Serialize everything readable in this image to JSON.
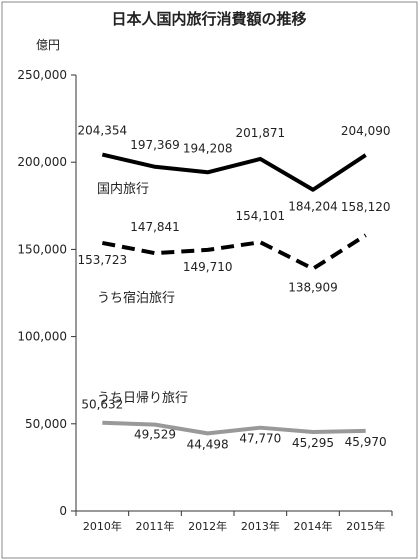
{
  "chart_data": {
    "type": "line",
    "title": "日本人国内旅行消費額の推移",
    "unit_label": "億円",
    "categories": [
      "2010年",
      "2011年",
      "2012年",
      "2013年",
      "2014年",
      "2015年"
    ],
    "ylim": [
      0,
      250000
    ],
    "y_ticks": [
      "0",
      "50,000",
      "100,000",
      "150,000",
      "200,000",
      "250,000"
    ],
    "grid": false,
    "series": [
      {
        "name": "国内旅行",
        "style": "solid",
        "color": "#000000",
        "values": [
          204354,
          197369,
          194208,
          201871,
          184204,
          204090
        ],
        "value_labels": [
          "204,354",
          "197,369",
          "194,208",
          "201,871",
          "184,204",
          "204,090"
        ]
      },
      {
        "name": "うち宿泊旅行",
        "style": "dashed",
        "color": "#000000",
        "values": [
          153723,
          147841,
          149710,
          154101,
          138909,
          158120
        ],
        "value_labels": [
          "153,723",
          "147,841",
          "149,710",
          "154,101",
          "138,909",
          "158,120"
        ]
      },
      {
        "name": "うち日帰り旅行",
        "style": "solid",
        "color": "#999999",
        "values": [
          50632,
          49529,
          44498,
          47770,
          45295,
          45970
        ],
        "value_labels": [
          "50,632",
          "49,529",
          "44,498",
          "47,770",
          "45,295",
          "45,970"
        ]
      }
    ]
  }
}
